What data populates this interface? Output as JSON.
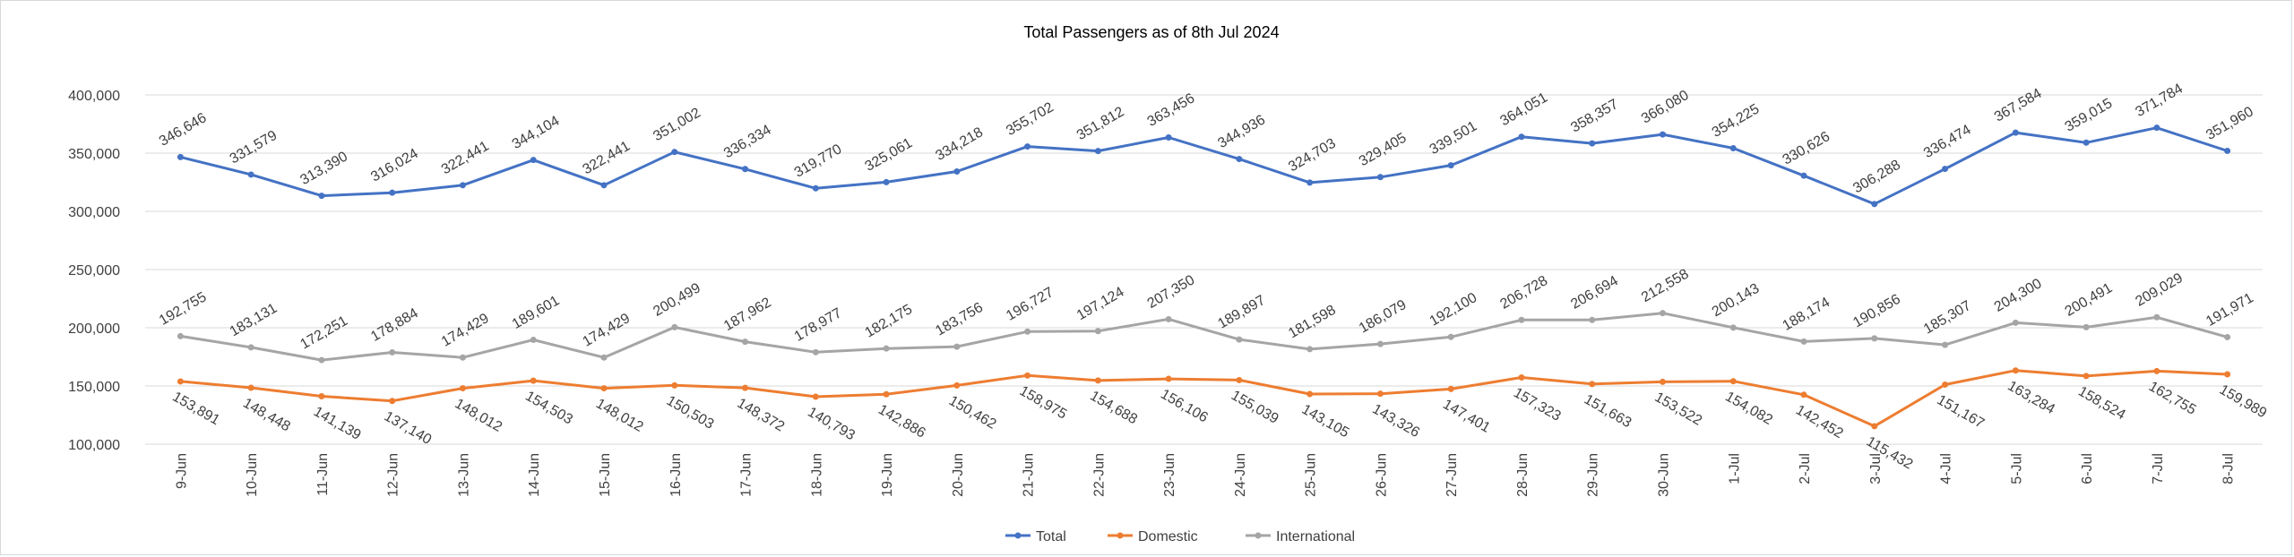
{
  "chart_data": {
    "type": "line",
    "title": "Total Passengers as of 8th Jul 2024",
    "xlabel": "",
    "ylabel": "",
    "ylim": [
      100000,
      400000
    ],
    "yticks": [
      100000,
      150000,
      200000,
      250000,
      300000,
      350000,
      400000
    ],
    "ytick_labels": [
      "100,000",
      "150,000",
      "200,000",
      "250,000",
      "300,000",
      "350,000",
      "400,000"
    ],
    "grid": true,
    "legend_position": "bottom",
    "categories": [
      "9-Jun",
      "10-Jun",
      "11-Jun",
      "12-Jun",
      "13-Jun",
      "14-Jun",
      "15-Jun",
      "16-Jun",
      "17-Jun",
      "18-Jun",
      "19-Jun",
      "20-Jun",
      "21-Jun",
      "22-Jun",
      "23-Jun",
      "24-Jun",
      "25-Jun",
      "26-Jun",
      "27-Jun",
      "28-Jun",
      "29-Jun",
      "30-Jun",
      "1-Jul",
      "2-Jul",
      "3-Jul",
      "4-Jul",
      "5-Jul",
      "6-Jul",
      "7-Jul",
      "8-Jul"
    ],
    "series": [
      {
        "name": "Total",
        "color": "#4472c4",
        "label_position": "above",
        "values": [
          346646,
          331579,
          313390,
          316024,
          322441,
          344104,
          322441,
          351002,
          336334,
          319770,
          325061,
          334218,
          355702,
          351812,
          363456,
          344936,
          324703,
          329405,
          339501,
          364051,
          358357,
          366080,
          354225,
          330626,
          306288,
          336474,
          367584,
          359015,
          371784,
          351960
        ],
        "labels": [
          "346,646",
          "331,579",
          "313,390",
          "316,024",
          "322,441",
          "344,104",
          "322,441",
          "351,002",
          "336,334",
          "319,770",
          "325,061",
          "334,218",
          "355,702",
          "351,812",
          "363,456",
          "344,936",
          "324,703",
          "329,405",
          "339,501",
          "364,051",
          "358,357",
          "366,080",
          "354,225",
          "330,626",
          "306,288",
          "336,474",
          "367,584",
          "359,015",
          "371,784",
          "351,960"
        ]
      },
      {
        "name": "Domestic",
        "color": "#ed7d31",
        "label_position": "below",
        "values": [
          153891,
          148448,
          141139,
          137140,
          148012,
          154503,
          148012,
          150503,
          148372,
          140793,
          142886,
          150462,
          158975,
          154688,
          156106,
          155039,
          143105,
          143326,
          147401,
          157323,
          151663,
          153522,
          154082,
          142452,
          115432,
          151167,
          163284,
          158524,
          162755,
          159989
        ],
        "labels": [
          "153,891",
          "148,448",
          "141,139",
          "137,140",
          "148,012",
          "154,503",
          "148,012",
          "150,503",
          "148,372",
          "140,793",
          "142,886",
          "150,462",
          "158,975",
          "154,688",
          "156,106",
          "155,039",
          "143,105",
          "143,326",
          "147,401",
          "157,323",
          "151,663",
          "153,522",
          "154,082",
          "142,452",
          "115,432",
          "151,167",
          "163,284",
          "158,524",
          "162,755",
          "159,989"
        ]
      },
      {
        "name": "International",
        "color": "#a5a5a5",
        "label_position": "above",
        "values": [
          192755,
          183131,
          172251,
          178884,
          174429,
          189601,
          174429,
          200499,
          187962,
          178977,
          182175,
          183756,
          196727,
          197124,
          207350,
          189897,
          181598,
          186079,
          192100,
          206728,
          206694,
          212558,
          200143,
          188174,
          190856,
          185307,
          204300,
          200491,
          209029,
          191971
        ],
        "labels": [
          "192,755",
          "183,131",
          "172,251",
          "178,884",
          "174,429",
          "189,601",
          "174,429",
          "200,499",
          "187,962",
          "178,977",
          "182,175",
          "183,756",
          "196,727",
          "197,124",
          "207,350",
          "189,897",
          "181,598",
          "186,079",
          "192,100",
          "206,728",
          "206,694",
          "212,558",
          "200,143",
          "188,174",
          "190,856",
          "185,307",
          "204,300",
          "200,491",
          "209,029",
          "191,971"
        ]
      }
    ]
  }
}
